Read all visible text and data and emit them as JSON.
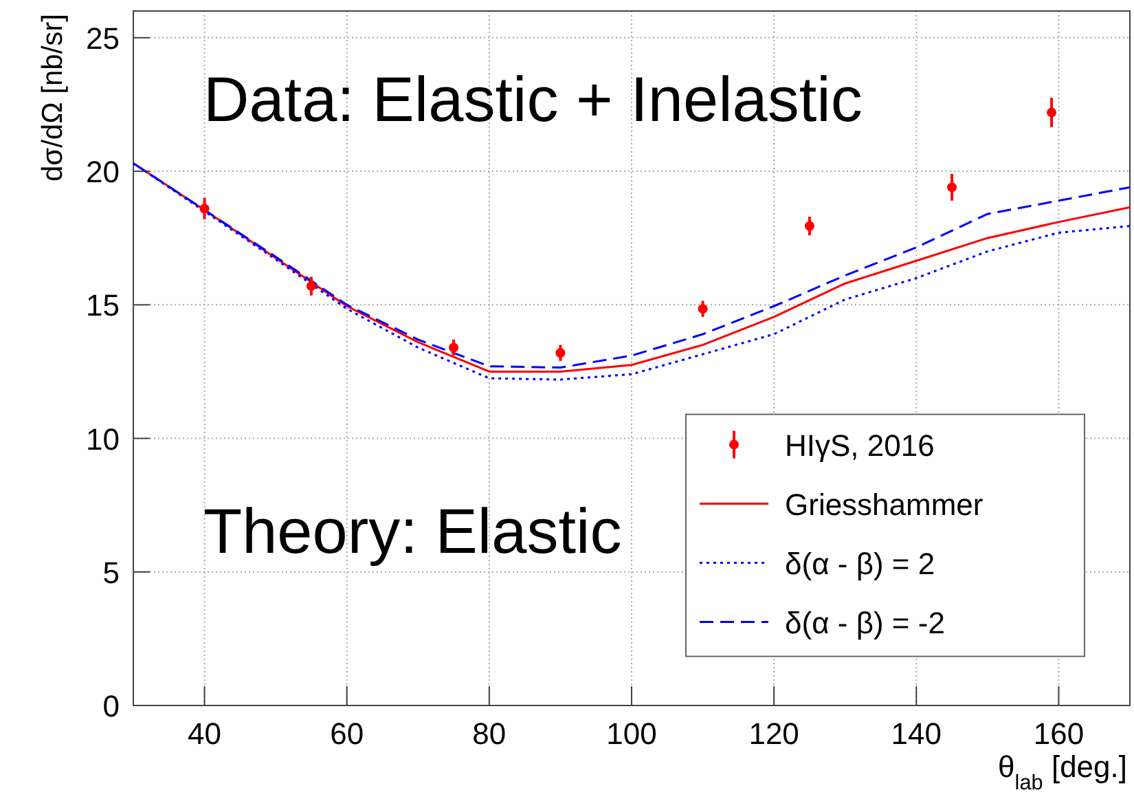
{
  "chart_data": {
    "type": "line",
    "xlabel": "θ$_{lab}$ [deg.]",
    "ylabel": "dσ/dΩ [nb/sr]",
    "xlim": [
      30,
      170
    ],
    "ylim": [
      0,
      26
    ],
    "xticks": [
      40,
      60,
      80,
      100,
      120,
      140,
      160
    ],
    "yticks": [
      0,
      5,
      10,
      15,
      20,
      25
    ],
    "grid": true,
    "legend": "bottom right",
    "annotations": [
      "Data: Elastic + Inelastic",
      "Theory: Elastic"
    ],
    "series": [
      {
        "name": "HIγS, 2016",
        "type": "scatter",
        "color": "#ff0000",
        "marker": "circle",
        "x": [
          40,
          55,
          75,
          90,
          110,
          125,
          145,
          159
        ],
        "values": [
          18.6,
          15.7,
          13.4,
          13.2,
          14.85,
          17.95,
          19.4,
          22.2
        ],
        "errors": [
          0.4,
          0.35,
          0.3,
          0.3,
          0.3,
          0.35,
          0.5,
          0.55
        ]
      },
      {
        "name": "Griesshammer",
        "color": "#ff0000",
        "line_style": "solid",
        "x": [
          30,
          40,
          50,
          60,
          70,
          80,
          90,
          100,
          110,
          120,
          130,
          140,
          150,
          160,
          170
        ],
        "values": [
          20.3,
          18.55,
          16.75,
          14.95,
          13.6,
          12.5,
          12.5,
          12.75,
          13.5,
          14.55,
          15.8,
          16.65,
          17.5,
          18.1,
          18.65
        ]
      },
      {
        "name": "δ(α - β) = 2",
        "color": "#0000ff",
        "line_style": "dotted",
        "x": [
          30,
          40,
          50,
          60,
          70,
          80,
          90,
          100,
          110,
          120,
          130,
          140,
          150,
          160,
          170
        ],
        "values": [
          20.3,
          18.5,
          16.7,
          14.85,
          13.4,
          12.25,
          12.2,
          12.4,
          13.15,
          13.9,
          15.2,
          16.0,
          17.0,
          17.7,
          17.95
        ]
      },
      {
        "name": "δ(α - β) = -2",
        "color": "#0000ff",
        "line_style": "dashed",
        "x": [
          30,
          40,
          50,
          60,
          70,
          80,
          90,
          100,
          110,
          120,
          130,
          140,
          150,
          160,
          170
        ],
        "values": [
          20.3,
          18.55,
          16.8,
          15.0,
          13.7,
          12.7,
          12.65,
          13.1,
          13.9,
          14.95,
          16.1,
          17.15,
          18.4,
          18.9,
          19.4
        ]
      }
    ]
  }
}
